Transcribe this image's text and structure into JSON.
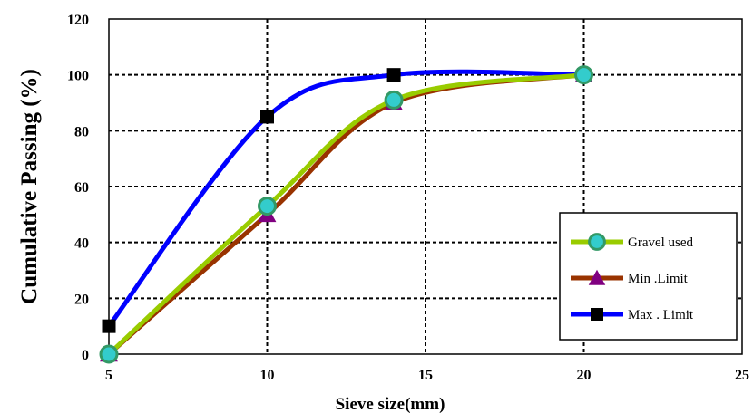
{
  "chart_data": {
    "type": "line",
    "title": "",
    "xlabel": "Sieve size(mm)",
    "ylabel": "Cumulative Passing (%)",
    "xlim": [
      5,
      25
    ],
    "ylim": [
      0,
      120
    ],
    "xticks": [
      5,
      10,
      15,
      20,
      25
    ],
    "yticks": [
      0,
      20,
      40,
      60,
      80,
      100,
      120
    ],
    "grid": "dashed",
    "legend_position": "bottom-right",
    "series": [
      {
        "name": "Gravel used",
        "color": "#99cc00",
        "marker": "circle",
        "marker_fill": "#33cccc",
        "marker_stroke": "#339966",
        "x": [
          5,
          10,
          14,
          20
        ],
        "y": [
          0,
          53,
          91,
          100
        ]
      },
      {
        "name": "Min .Limit",
        "color": "#993300",
        "marker": "triangle",
        "marker_fill": "#800080",
        "x": [
          5,
          10,
          14,
          20
        ],
        "y": [
          0,
          50,
          90,
          100
        ]
      },
      {
        "name": "Max . Limit",
        "color": "#0000ff",
        "marker": "square",
        "marker_fill": "#000000",
        "x": [
          5,
          10,
          14,
          20
        ],
        "y": [
          10,
          85,
          100,
          100
        ]
      }
    ]
  }
}
